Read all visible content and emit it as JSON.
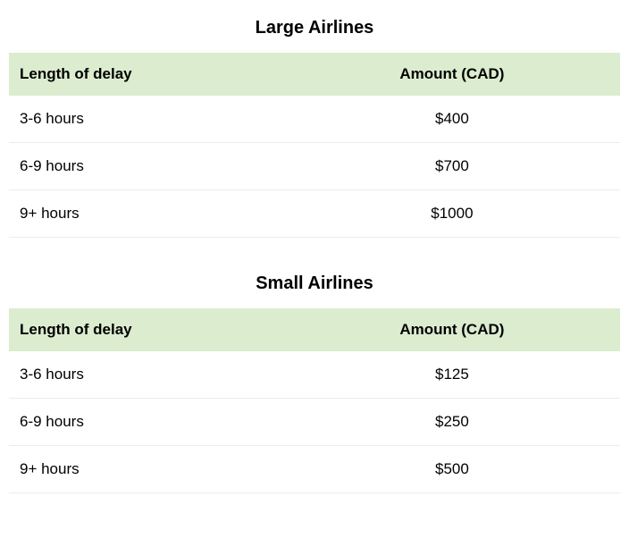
{
  "tables": [
    {
      "title": "Large Airlines",
      "columns": [
        "Length of delay",
        "Amount (CAD)"
      ],
      "rows": [
        [
          "3-6 hours",
          "$400"
        ],
        [
          "6-9 hours",
          "$700"
        ],
        [
          "9+ hours",
          "$1000"
        ]
      ]
    },
    {
      "title": "Small Airlines",
      "columns": [
        "Length of delay",
        "Amount (CAD)"
      ],
      "rows": [
        [
          "3-6 hours",
          "$125"
        ],
        [
          "6-9 hours",
          "$250"
        ],
        [
          "9+ hours",
          "$500"
        ]
      ]
    }
  ],
  "styling": {
    "header_bg_color": "#dceccf",
    "row_border_color": "#ececec",
    "text_color": "#000000",
    "title_fontsize": 20,
    "header_fontsize": 17,
    "cell_fontsize": 17,
    "font_family": "Arial, Helvetica, sans-serif"
  }
}
